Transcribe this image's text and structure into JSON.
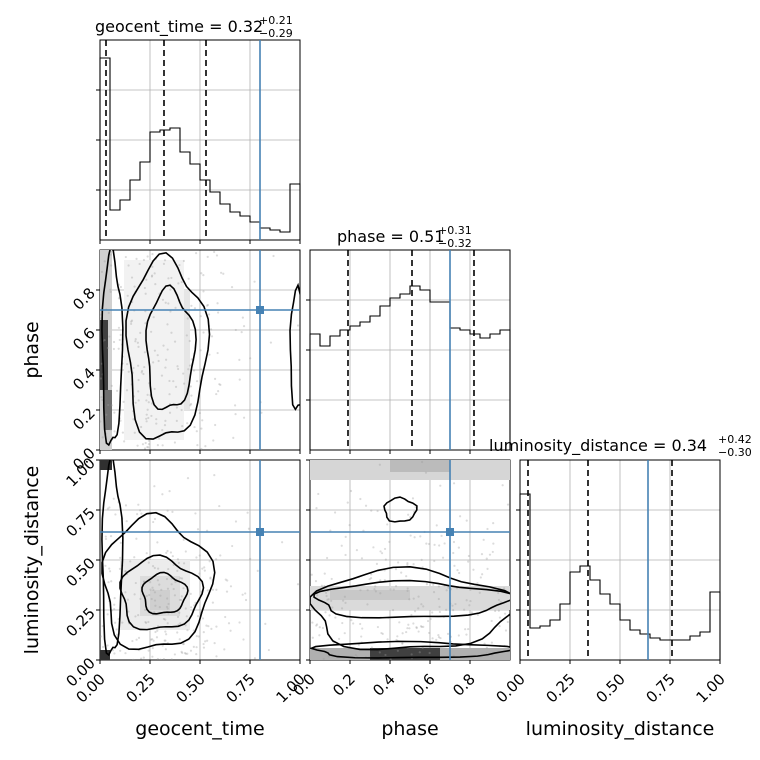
{
  "chart_data": {
    "type": "corner",
    "parameters": [
      "geocent_time",
      "phase",
      "luminosity_distance"
    ],
    "truths": {
      "geocent_time": 0.8,
      "phase": 0.7,
      "luminosity_distance": 0.64
    },
    "truth_color": "#4682b4",
    "grid": true,
    "panels": {
      "hist_geocent_time": {
        "title_main": "geocent_time = 0.32",
        "title_sup": "+0.21",
        "title_sub": "−0.29",
        "range": [
          0,
          1
        ],
        "quantiles": [
          0.03,
          0.32,
          0.53
        ],
        "bin_edges": [
          0,
          0.05,
          0.1,
          0.15,
          0.2,
          0.25,
          0.3,
          0.35,
          0.4,
          0.45,
          0.5,
          0.55,
          0.6,
          0.65,
          0.7,
          0.75,
          0.8,
          0.85,
          0.9,
          0.95,
          1.0
        ],
        "counts": [
          0.91,
          0.15,
          0.2,
          0.3,
          0.39,
          0.54,
          0.55,
          0.56,
          0.44,
          0.38,
          0.3,
          0.24,
          0.18,
          0.14,
          0.12,
          0.09,
          0.06,
          0.05,
          0.04,
          0.28
        ]
      },
      "hist_phase": {
        "title_main": "phase = 0.51",
        "title_sup": "+0.31",
        "title_sub": "−0.32",
        "range": [
          0,
          1
        ],
        "quantiles": [
          0.19,
          0.51,
          0.82
        ],
        "bin_edges": [
          0,
          0.05,
          0.1,
          0.15,
          0.2,
          0.25,
          0.3,
          0.35,
          0.4,
          0.45,
          0.5,
          0.55,
          0.6,
          0.65,
          0.7,
          0.75,
          0.8,
          0.85,
          0.9,
          0.95,
          1.0
        ],
        "counts": [
          0.58,
          0.52,
          0.57,
          0.6,
          0.62,
          0.64,
          0.67,
          0.72,
          0.76,
          0.78,
          0.82,
          0.8,
          0.74,
          0.74,
          0.61,
          0.6,
          0.58,
          0.56,
          0.58,
          0.6
        ]
      },
      "hist_luminosity_distance": {
        "title_main": "luminosity_distance = 0.34",
        "title_sup": "+0.42",
        "title_sub": "−0.30",
        "range": [
          0,
          1
        ],
        "quantiles": [
          0.04,
          0.34,
          0.76
        ],
        "bin_edges": [
          0,
          0.05,
          0.1,
          0.15,
          0.2,
          0.25,
          0.3,
          0.35,
          0.4,
          0.45,
          0.5,
          0.55,
          0.6,
          0.65,
          0.7,
          0.75,
          0.8,
          0.85,
          0.9,
          0.95,
          1.0
        ],
        "counts": [
          0.83,
          0.16,
          0.17,
          0.2,
          0.28,
          0.44,
          0.47,
          0.4,
          0.33,
          0.28,
          0.2,
          0.15,
          0.13,
          0.11,
          0.1,
          0.1,
          0.1,
          0.12,
          0.14,
          0.34
        ]
      }
    },
    "x_tick_labels": {
      "geocent_time": [
        "0.00",
        "0.25",
        "0.50",
        "0.75",
        "1.00"
      ],
      "phase": [
        "0.0",
        "0.2",
        "0.4",
        "0.6",
        "0.8"
      ],
      "luminosity_distance": [
        "0.00",
        "0.25",
        "0.50",
        "0.75",
        "1.00"
      ]
    },
    "y_tick_labels": {
      "phase": [
        "0.0",
        "0.2",
        "0.4",
        "0.6",
        "0.8"
      ],
      "luminosity_distance": [
        "0.00",
        "0.25",
        "0.50",
        "0.75",
        "1.00"
      ]
    },
    "xlabels": [
      "geocent_time",
      "phase",
      "luminosity_distance"
    ],
    "ylabels": [
      "phase",
      "luminosity_distance"
    ]
  }
}
